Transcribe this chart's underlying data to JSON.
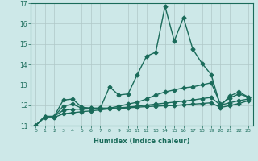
{
  "xlabel": "Humidex (Indice chaleur)",
  "background_color": "#cde8e8",
  "grid_color": "#b0c8c8",
  "line_color": "#1a6b5a",
  "xlim": [
    -0.5,
    23.5
  ],
  "ylim": [
    11,
    17
  ],
  "xticks": [
    0,
    1,
    2,
    3,
    4,
    5,
    6,
    7,
    8,
    9,
    10,
    11,
    12,
    13,
    14,
    15,
    16,
    17,
    18,
    19,
    20,
    21,
    22,
    23
  ],
  "yticks": [
    11,
    12,
    13,
    14,
    15,
    16,
    17
  ],
  "series": [
    {
      "x": [
        0,
        1,
        2,
        3,
        4,
        5,
        6,
        7,
        8,
        9,
        10,
        11,
        12,
        13,
        14,
        15,
        16,
        17,
        18,
        19,
        20,
        21,
        22,
        23
      ],
      "y": [
        11.0,
        11.45,
        11.45,
        12.25,
        12.3,
        11.9,
        11.85,
        11.85,
        12.9,
        12.5,
        12.55,
        13.5,
        14.4,
        14.6,
        16.85,
        15.15,
        16.3,
        14.75,
        14.05,
        13.5,
        11.95,
        12.45,
        12.65,
        12.4
      ],
      "marker": "D",
      "markersize": 2.5,
      "linewidth": 1.0
    },
    {
      "x": [
        0,
        1,
        2,
        3,
        4,
        5,
        6,
        7,
        8,
        9,
        10,
        11,
        12,
        13,
        14,
        15,
        16,
        17,
        18,
        19,
        20,
        21,
        22,
        23
      ],
      "y": [
        11.0,
        11.45,
        11.45,
        11.95,
        12.05,
        11.85,
        11.85,
        11.85,
        11.85,
        11.95,
        12.05,
        12.15,
        12.3,
        12.5,
        12.65,
        12.75,
        12.85,
        12.9,
        13.0,
        13.1,
        12.05,
        12.35,
        12.55,
        12.4
      ],
      "marker": "D",
      "markersize": 2.5,
      "linewidth": 1.0
    },
    {
      "x": [
        0,
        1,
        2,
        3,
        4,
        5,
        6,
        7,
        8,
        9,
        10,
        11,
        12,
        13,
        14,
        15,
        16,
        17,
        18,
        19,
        20,
        21,
        22,
        23
      ],
      "y": [
        11.0,
        11.45,
        11.45,
        11.75,
        11.8,
        11.8,
        11.82,
        11.85,
        11.85,
        11.87,
        11.9,
        11.95,
        12.0,
        12.05,
        12.1,
        12.15,
        12.2,
        12.25,
        12.32,
        12.38,
        12.0,
        12.12,
        12.22,
        12.3
      ],
      "marker": "D",
      "markersize": 2.5,
      "linewidth": 1.0
    },
    {
      "x": [
        0,
        1,
        2,
        3,
        4,
        5,
        6,
        7,
        8,
        9,
        10,
        11,
        12,
        13,
        14,
        15,
        16,
        17,
        18,
        19,
        20,
        21,
        22,
        23
      ],
      "y": [
        11.0,
        11.4,
        11.4,
        11.58,
        11.63,
        11.68,
        11.72,
        11.77,
        11.82,
        11.83,
        11.87,
        11.9,
        11.93,
        11.95,
        11.97,
        11.98,
        12.02,
        12.05,
        12.08,
        12.12,
        11.88,
        11.98,
        12.08,
        12.22
      ],
      "marker": "D",
      "markersize": 2.5,
      "linewidth": 1.0
    }
  ]
}
